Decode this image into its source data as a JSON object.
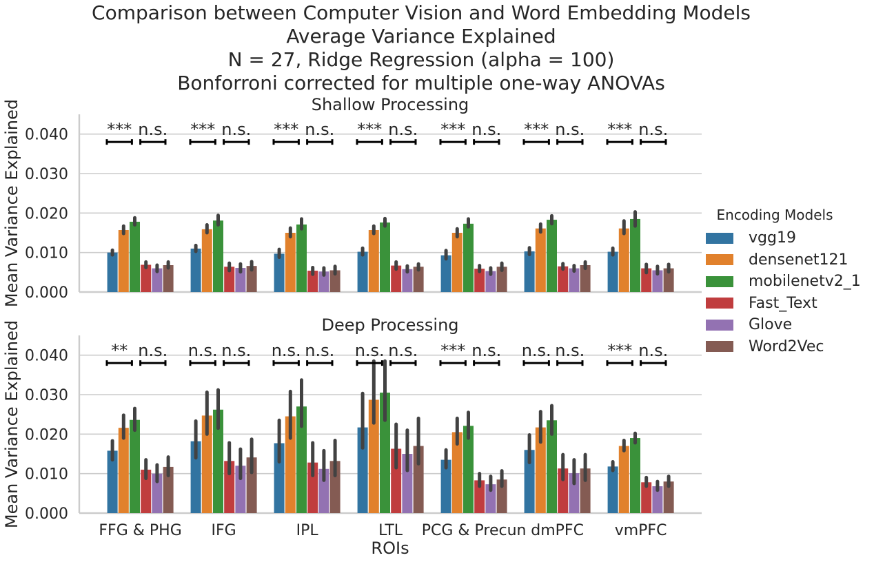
{
  "title_lines": [
    "Comparison between Computer Vision and Word Embedding Models",
    "Average Variance Explained",
    "N = 27, Ridge Regression (alpha = 100)",
    "Bonforroni corrected for multiple one-way ANOVAs"
  ],
  "legend": {
    "title": "Encoding Models",
    "items": [
      {
        "label": "vgg19",
        "color": "#3274a1"
      },
      {
        "label": "densenet121",
        "color": "#e1812c"
      },
      {
        "label": "mobilenetv2_1",
        "color": "#3a923a"
      },
      {
        "label": "Fast_Text",
        "color": "#c03d3e"
      },
      {
        "label": "Glove",
        "color": "#9372b2"
      },
      {
        "label": "Word2Vec",
        "color": "#845b53"
      }
    ]
  },
  "chart_data": [
    {
      "type": "bar",
      "title": "Shallow Processing",
      "xlabel": "",
      "ylabel": "Mean Variance Explained",
      "ylim": [
        0,
        0.045
      ],
      "yticks": [
        "0.000",
        "0.010",
        "0.020",
        "0.030",
        "0.040"
      ],
      "categories": [
        "FFG & PHG",
        "IFG",
        "IPL",
        "LTL",
        "PCG & Precun",
        "dmPFC",
        "vmPFC"
      ],
      "series": [
        {
          "name": "vgg19",
          "values": [
            0.01,
            0.011,
            0.0097,
            0.0102,
            0.0093,
            0.0103,
            0.0102
          ],
          "err": [
            [
              0.0094,
              0.0106
            ],
            [
              0.0103,
              0.0118
            ],
            [
              0.0088,
              0.0108
            ],
            [
              0.0094,
              0.0111
            ],
            [
              0.0084,
              0.0105
            ],
            [
              0.0095,
              0.0112
            ],
            [
              0.0094,
              0.0111
            ]
          ]
        },
        {
          "name": "densenet121",
          "values": [
            0.0157,
            0.0159,
            0.015,
            0.0157,
            0.015,
            0.0161,
            0.0161
          ],
          "err": [
            [
              0.0148,
              0.0167
            ],
            [
              0.015,
              0.017
            ],
            [
              0.014,
              0.0162
            ],
            [
              0.0148,
              0.0167
            ],
            [
              0.014,
              0.016
            ],
            [
              0.0152,
              0.0172
            ],
            [
              0.0148,
              0.018
            ]
          ]
        },
        {
          "name": "mobilenetv2_1",
          "values": [
            0.0178,
            0.0181,
            0.0171,
            0.0176,
            0.0173,
            0.0183,
            0.0185
          ],
          "err": [
            [
              0.017,
              0.0188
            ],
            [
              0.017,
              0.0194
            ],
            [
              0.016,
              0.0185
            ],
            [
              0.0167,
              0.0186
            ],
            [
              0.0165,
              0.0185
            ],
            [
              0.0173,
              0.0193
            ],
            [
              0.0167,
              0.0203
            ]
          ]
        },
        {
          "name": "Fast_Text",
          "values": [
            0.0069,
            0.0064,
            0.0054,
            0.0067,
            0.0059,
            0.0065,
            0.006
          ],
          "err": [
            [
              0.0062,
              0.0076
            ],
            [
              0.0054,
              0.0073
            ],
            [
              0.0045,
              0.0062
            ],
            [
              0.0058,
              0.0076
            ],
            [
              0.0052,
              0.0067
            ],
            [
              0.0058,
              0.0072
            ],
            [
              0.0049,
              0.007
            ]
          ]
        },
        {
          "name": "Glove",
          "values": [
            0.006,
            0.0061,
            0.0052,
            0.0058,
            0.0053,
            0.006,
            0.0055
          ],
          "err": [
            [
              0.0052,
              0.0068
            ],
            [
              0.0051,
              0.0071
            ],
            [
              0.0043,
              0.0061
            ],
            [
              0.0051,
              0.0066
            ],
            [
              0.0045,
              0.0061
            ],
            [
              0.0053,
              0.0067
            ],
            [
              0.0046,
              0.0065
            ]
          ]
        },
        {
          "name": "Word2Vec",
          "values": [
            0.0068,
            0.0066,
            0.0055,
            0.0064,
            0.0064,
            0.0068,
            0.006
          ],
          "err": [
            [
              0.0061,
              0.0076
            ],
            [
              0.0056,
              0.0077
            ],
            [
              0.0046,
              0.0065
            ],
            [
              0.0056,
              0.0071
            ],
            [
              0.0055,
              0.0073
            ],
            [
              0.006,
              0.0076
            ],
            [
              0.0051,
              0.007
            ]
          ]
        }
      ],
      "annotations": [
        {
          "category": "FFG & PHG",
          "left": "***",
          "right": "n.s."
        },
        {
          "category": "IFG",
          "left": "***",
          "right": "n.s."
        },
        {
          "category": "IPL",
          "left": "***",
          "right": "n.s."
        },
        {
          "category": "LTL",
          "left": "***",
          "right": "n.s."
        },
        {
          "category": "PCG & Precun",
          "left": "***",
          "right": "n.s."
        },
        {
          "category": "dmPFC",
          "left": "***",
          "right": "n.s."
        },
        {
          "category": "vmPFC",
          "left": "***",
          "right": "n.s."
        }
      ],
      "annotation_y": 0.038,
      "grid": true
    },
    {
      "type": "bar",
      "title": "Deep Processing",
      "xlabel": "ROIs",
      "ylabel": "Mean Variance Explained",
      "ylim": [
        0,
        0.045
      ],
      "yticks": [
        "0.000",
        "0.010",
        "0.020",
        "0.030",
        "0.040"
      ],
      "categories": [
        "FFG & PHG",
        "IFG",
        "IPL",
        "LTL",
        "PCG & Precun",
        "dmPFC",
        "vmPFC"
      ],
      "series": [
        {
          "name": "vgg19",
          "values": [
            0.0158,
            0.0182,
            0.0177,
            0.0217,
            0.0135,
            0.016,
            0.0118
          ],
          "err": [
            [
              0.0135,
              0.0183
            ],
            [
              0.014,
              0.0233
            ],
            [
              0.013,
              0.0235
            ],
            [
              0.0165,
              0.0303
            ],
            [
              0.0115,
              0.016
            ],
            [
              0.0128,
              0.0198
            ],
            [
              0.0108,
              0.013
            ]
          ]
        },
        {
          "name": "densenet121",
          "values": [
            0.0216,
            0.0247,
            0.0245,
            0.0287,
            0.0205,
            0.0217,
            0.017
          ],
          "err": [
            [
              0.019,
              0.0248
            ],
            [
              0.02,
              0.0306
            ],
            [
              0.019,
              0.0308
            ],
            [
              0.0228,
              0.0385
            ],
            [
              0.0175,
              0.024
            ],
            [
              0.018,
              0.0257
            ],
            [
              0.0158,
              0.0184
            ]
          ]
        },
        {
          "name": "mobilenetv2_1",
          "values": [
            0.0236,
            0.0262,
            0.027,
            0.0305,
            0.0221,
            0.0235,
            0.019
          ],
          "err": [
            [
              0.021,
              0.0265
            ],
            [
              0.0215,
              0.0312
            ],
            [
              0.022,
              0.0337
            ],
            [
              0.0235,
              0.0385
            ],
            [
              0.019,
              0.0255
            ],
            [
              0.02,
              0.0272
            ],
            [
              0.0178,
              0.0202
            ]
          ]
        },
        {
          "name": "Fast_Text",
          "values": [
            0.011,
            0.0132,
            0.0128,
            0.0163,
            0.0083,
            0.0113,
            0.0078
          ],
          "err": [
            [
              0.0088,
              0.0135
            ],
            [
              0.01,
              0.0178
            ],
            [
              0.0095,
              0.0178
            ],
            [
              0.0115,
              0.0225
            ],
            [
              0.0068,
              0.01
            ],
            [
              0.0085,
              0.0148
            ],
            [
              0.0068,
              0.009
            ]
          ]
        },
        {
          "name": "Glove",
          "values": [
            0.01,
            0.012,
            0.0112,
            0.015,
            0.0073,
            0.0101,
            0.0068
          ],
          "err": [
            [
              0.008,
              0.0122
            ],
            [
              0.0088,
              0.0162
            ],
            [
              0.0083,
              0.0158
            ],
            [
              0.0108,
              0.021
            ],
            [
              0.0058,
              0.0093
            ],
            [
              0.0075,
              0.0135
            ],
            [
              0.0058,
              0.008
            ]
          ]
        },
        {
          "name": "Word2Vec",
          "values": [
            0.0117,
            0.0141,
            0.0132,
            0.017,
            0.0085,
            0.0113,
            0.008
          ],
          "err": [
            [
              0.0095,
              0.0142
            ],
            [
              0.0103,
              0.0187
            ],
            [
              0.0095,
              0.0184
            ],
            [
              0.0125,
              0.024
            ],
            [
              0.0068,
              0.0107
            ],
            [
              0.0083,
              0.0148
            ],
            [
              0.0068,
              0.0093
            ]
          ]
        }
      ],
      "annotations": [
        {
          "category": "FFG & PHG",
          "left": "**",
          "right": "n.s."
        },
        {
          "category": "IFG",
          "left": "n.s.",
          "right": "n.s."
        },
        {
          "category": "IPL",
          "left": "n.s.",
          "right": "n.s."
        },
        {
          "category": "LTL",
          "left": "n.s.",
          "right": "n.s."
        },
        {
          "category": "PCG & Precun",
          "left": "***",
          "right": "n.s."
        },
        {
          "category": "dmPFC",
          "left": "n.s.",
          "right": "n.s."
        },
        {
          "category": "vmPFC",
          "left": "***",
          "right": "n.s."
        }
      ],
      "annotation_y": 0.038,
      "grid": true
    }
  ]
}
